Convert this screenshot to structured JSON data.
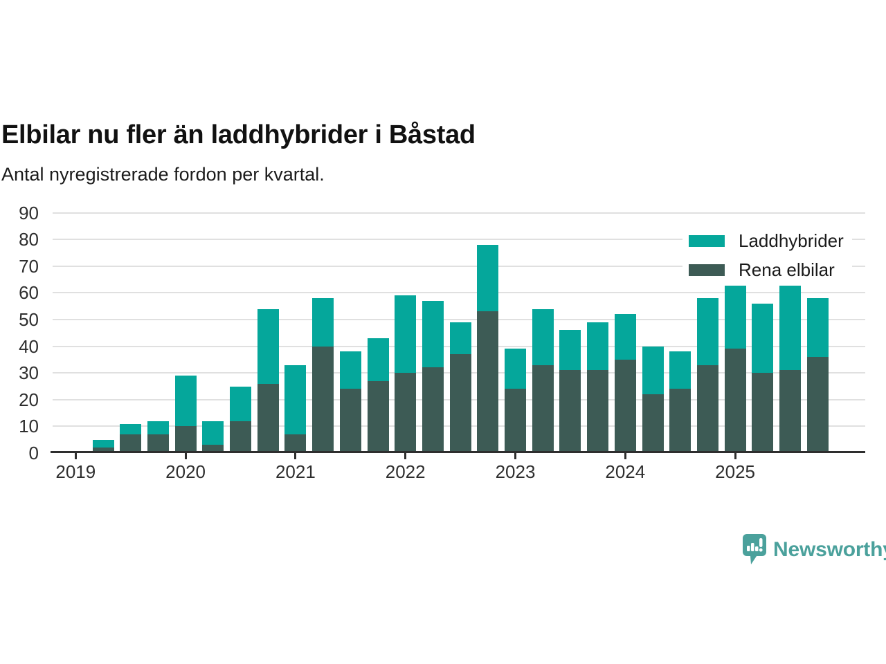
{
  "header": {
    "title": "Elbilar nu fler än laddhybrider i Båstad",
    "subtitle": "Antal nyregistrerade fordon per kvartal."
  },
  "branding": {
    "logo_text": "Newsworthy",
    "logo_color": "#4BA19C"
  },
  "colors": {
    "laddhybrider": "#05A79B",
    "rena_elbilar": "#3D5B55",
    "gridline": "#e0e0e0",
    "axis": "#2e2e2e"
  },
  "chart_data": {
    "type": "bar",
    "stacked": true,
    "title": "Elbilar nu fler än laddhybrider i Båstad",
    "subtitle": "Antal nyregistrerade fordon per kvartal.",
    "ylim": [
      0,
      90
    ],
    "y_ticks": [
      0,
      10,
      20,
      30,
      40,
      50,
      60,
      70,
      80,
      90
    ],
    "grid": true,
    "legend_position": "top-right",
    "x_year_labels": [
      "2019",
      "2020",
      "2021",
      "2022",
      "2023",
      "2024",
      "2025"
    ],
    "categories": [
      "2019-Q1",
      "2019-Q2",
      "2019-Q3",
      "2019-Q4",
      "2020-Q1",
      "2020-Q2",
      "2020-Q3",
      "2020-Q4",
      "2021-Q1",
      "2021-Q2",
      "2021-Q3",
      "2021-Q4",
      "2022-Q1",
      "2022-Q2",
      "2022-Q3",
      "2022-Q4",
      "2023-Q1",
      "2023-Q2",
      "2023-Q3",
      "2023-Q4",
      "2024-Q1",
      "2024-Q2",
      "2024-Q3",
      "2024-Q4",
      "2025-Q1",
      "2025-Q2",
      "2025-Q3",
      "2025-Q4"
    ],
    "bottom_series": "Rena elbilar",
    "series": [
      {
        "name": "Laddhybrider",
        "color": "#05A79B",
        "values": [
          0,
          3,
          4,
          5,
          19,
          9,
          13,
          28,
          26,
          18,
          14,
          16,
          29,
          25,
          12,
          25,
          15,
          21,
          15,
          18,
          17,
          18,
          14,
          25,
          25,
          26,
          33,
          22
        ]
      },
      {
        "name": "Rena elbilar",
        "color": "#3D5B55",
        "values": [
          0,
          2,
          7,
          7,
          10,
          3,
          12,
          26,
          7,
          40,
          24,
          27,
          30,
          32,
          37,
          53,
          24,
          33,
          31,
          31,
          35,
          22,
          24,
          33,
          39,
          30,
          31,
          36
        ]
      }
    ],
    "stacked_totals": [
      0,
      5,
      11,
      12,
      29,
      12,
      25,
      54,
      33,
      58,
      38,
      43,
      59,
      57,
      49,
      78,
      39,
      54,
      46,
      49,
      52,
      40,
      38,
      58,
      64,
      56,
      64,
      58
    ]
  }
}
